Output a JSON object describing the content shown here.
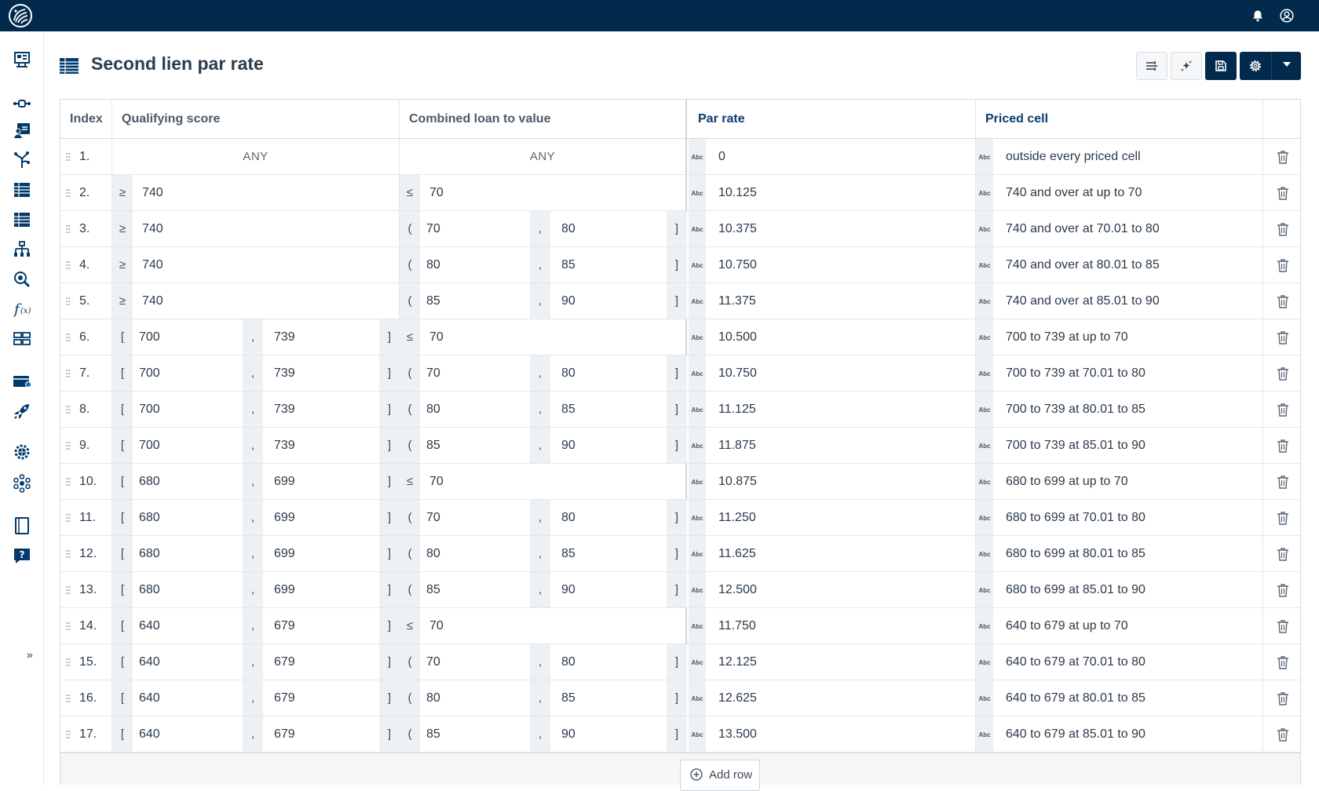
{
  "page": {
    "title": "Second lien par rate"
  },
  "columns": {
    "index": "Index",
    "qualifying_score": "Qualifying score",
    "cltv": "Combined loan to value",
    "par_rate": "Par rate",
    "priced_cell": "Priced cell"
  },
  "icons": {
    "topbar": [
      "logo-icon",
      "bell-icon",
      "user-icon"
    ],
    "sidebar": [
      "dashboard-icon",
      "flow-icon",
      "contact-card-icon",
      "decision-tree-icon",
      "table-icon",
      "table-icon",
      "hierarchy-icon",
      "search-settings-icon",
      "function-icon",
      "grid-icon",
      "card-icon",
      "rocket-icon",
      "global-settings-icon",
      "network-icon",
      "document-icon",
      "help-icon"
    ],
    "toolbar": [
      "filter-icon",
      "sparkle-icon",
      "save-icon",
      "gear-icon",
      "caret-down-icon"
    ],
    "cell_type": "Abc",
    "row_actions": [
      "drag-handle-icon",
      "trash-icon"
    ]
  },
  "colors": {
    "topbar": "#022a4d",
    "accent": "#0a3d6f",
    "sidebar_icon": "#023b6b"
  },
  "rows": [
    {
      "index": "1.",
      "qs": {
        "type": "any",
        "text": "ANY"
      },
      "cltv": {
        "type": "any",
        "text": "ANY"
      },
      "par": "0",
      "priced": "outside every priced cell"
    },
    {
      "index": "2.",
      "qs": {
        "type": "ge",
        "op": "≥",
        "a": "740"
      },
      "cltv": {
        "type": "le",
        "op": "≤",
        "a": "70"
      },
      "par": "10.125",
      "priced": "740 and over at up to 70"
    },
    {
      "index": "3.",
      "qs": {
        "type": "ge",
        "op": "≥",
        "a": "740"
      },
      "cltv": {
        "type": "range",
        "open": "(",
        "a": "70",
        "sep": ",",
        "b": "80",
        "close": "]"
      },
      "par": "10.375",
      "priced": "740 and over at 70.01 to 80"
    },
    {
      "index": "4.",
      "qs": {
        "type": "ge",
        "op": "≥",
        "a": "740"
      },
      "cltv": {
        "type": "range",
        "open": "(",
        "a": "80",
        "sep": ",",
        "b": "85",
        "close": "]"
      },
      "par": "10.750",
      "priced": "740 and over at 80.01 to 85"
    },
    {
      "index": "5.",
      "qs": {
        "type": "ge",
        "op": "≥",
        "a": "740"
      },
      "cltv": {
        "type": "range",
        "open": "(",
        "a": "85",
        "sep": ",",
        "b": "90",
        "close": "]"
      },
      "par": "11.375",
      "priced": "740 and over at 85.01 to 90"
    },
    {
      "index": "6.",
      "qs": {
        "type": "range",
        "open": "[",
        "a": "700",
        "sep": ",",
        "b": "739",
        "close": "]"
      },
      "cltv": {
        "type": "le",
        "op": "≤",
        "a": "70"
      },
      "par": "10.500",
      "priced": "700 to 739 at up to 70"
    },
    {
      "index": "7.",
      "qs": {
        "type": "range",
        "open": "[",
        "a": "700",
        "sep": ",",
        "b": "739",
        "close": "]"
      },
      "cltv": {
        "type": "range",
        "open": "(",
        "a": "70",
        "sep": ",",
        "b": "80",
        "close": "]"
      },
      "par": "10.750",
      "priced": "700 to 739 at 70.01 to 80"
    },
    {
      "index": "8.",
      "qs": {
        "type": "range",
        "open": "[",
        "a": "700",
        "sep": ",",
        "b": "739",
        "close": "]"
      },
      "cltv": {
        "type": "range",
        "open": "(",
        "a": "80",
        "sep": ",",
        "b": "85",
        "close": "]"
      },
      "par": "11.125",
      "priced": "700 to 739 at 80.01 to 85"
    },
    {
      "index": "9.",
      "qs": {
        "type": "range",
        "open": "[",
        "a": "700",
        "sep": ",",
        "b": "739",
        "close": "]"
      },
      "cltv": {
        "type": "range",
        "open": "(",
        "a": "85",
        "sep": ",",
        "b": "90",
        "close": "]"
      },
      "par": "11.875",
      "priced": "700 to 739 at 85.01 to 90"
    },
    {
      "index": "10.",
      "qs": {
        "type": "range",
        "open": "[",
        "a": "680",
        "sep": ",",
        "b": "699",
        "close": "]"
      },
      "cltv": {
        "type": "le",
        "op": "≤",
        "a": "70"
      },
      "par": "10.875",
      "priced": "680 to 699 at up to 70"
    },
    {
      "index": "11.",
      "qs": {
        "type": "range",
        "open": "[",
        "a": "680",
        "sep": ",",
        "b": "699",
        "close": "]"
      },
      "cltv": {
        "type": "range",
        "open": "(",
        "a": "70",
        "sep": ",",
        "b": "80",
        "close": "]"
      },
      "par": "11.250",
      "priced": "680 to 699 at 70.01 to 80"
    },
    {
      "index": "12.",
      "qs": {
        "type": "range",
        "open": "[",
        "a": "680",
        "sep": ",",
        "b": "699",
        "close": "]"
      },
      "cltv": {
        "type": "range",
        "open": "(",
        "a": "80",
        "sep": ",",
        "b": "85",
        "close": "]"
      },
      "par": "11.625",
      "priced": "680 to 699 at 80.01 to 85"
    },
    {
      "index": "13.",
      "qs": {
        "type": "range",
        "open": "[",
        "a": "680",
        "sep": ",",
        "b": "699",
        "close": "]"
      },
      "cltv": {
        "type": "range",
        "open": "(",
        "a": "85",
        "sep": ",",
        "b": "90",
        "close": "]"
      },
      "par": "12.500",
      "priced": "680 to 699 at 85.01 to 90"
    },
    {
      "index": "14.",
      "qs": {
        "type": "range",
        "open": "[",
        "a": "640",
        "sep": ",",
        "b": "679",
        "close": "]"
      },
      "cltv": {
        "type": "le",
        "op": "≤",
        "a": "70"
      },
      "par": "11.750",
      "priced": "640 to 679 at up to 70"
    },
    {
      "index": "15.",
      "qs": {
        "type": "range",
        "open": "[",
        "a": "640",
        "sep": ",",
        "b": "679",
        "close": "]"
      },
      "cltv": {
        "type": "range",
        "open": "(",
        "a": "70",
        "sep": ",",
        "b": "80",
        "close": "]"
      },
      "par": "12.125",
      "priced": "640 to 679 at 70.01 to 80"
    },
    {
      "index": "16.",
      "qs": {
        "type": "range",
        "open": "[",
        "a": "640",
        "sep": ",",
        "b": "679",
        "close": "]"
      },
      "cltv": {
        "type": "range",
        "open": "(",
        "a": "80",
        "sep": ",",
        "b": "85",
        "close": "]"
      },
      "par": "12.625",
      "priced": "640 to 679 at 80.01 to 85"
    },
    {
      "index": "17.",
      "qs": {
        "type": "range",
        "open": "[",
        "a": "640",
        "sep": ",",
        "b": "679",
        "close": "]"
      },
      "cltv": {
        "type": "range",
        "open": "(",
        "a": "85",
        "sep": ",",
        "b": "90",
        "close": "]"
      },
      "par": "13.500",
      "priced": "640 to 679 at 85.01 to 90"
    }
  ],
  "footer": {
    "add_row_label": "Add row"
  },
  "sidebar": {
    "expand_label": "»"
  }
}
